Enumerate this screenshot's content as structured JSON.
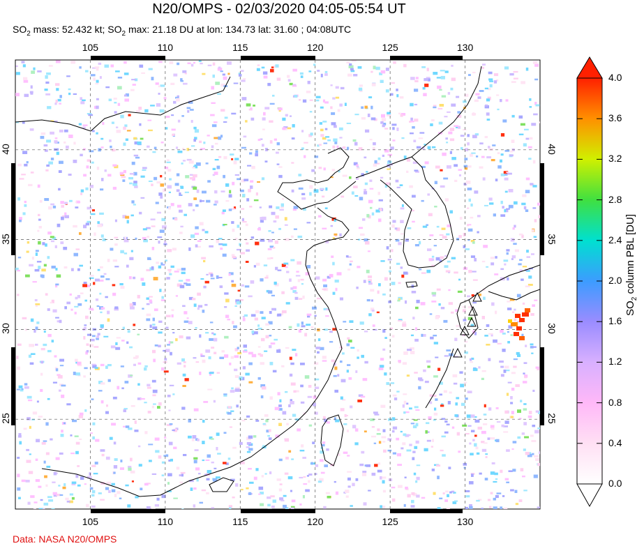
{
  "header": {
    "title": "N20/OMPS - 02/03/2020 04:05-05:54 UT",
    "subtitle_parts": [
      "SO",
      "2",
      " mass: 52.432 kt; SO",
      "2",
      " max: 21.18 DU at lon: 134.73 lat: 31.60 ; 04:08UTC"
    ]
  },
  "map": {
    "lon_ticks": [
      "105",
      "110",
      "115",
      "120",
      "125",
      "130"
    ],
    "lat_ticks": [
      "40",
      "35",
      "30",
      "25"
    ],
    "lon_values": [
      105,
      110,
      115,
      120,
      125,
      130
    ],
    "lat_values": [
      40,
      35,
      30,
      25
    ],
    "extent": {
      "lon_min": 100,
      "lon_max": 135,
      "lat_min": 20,
      "lat_max": 45
    }
  },
  "colorbar": {
    "title_parts": [
      "SO",
      "2",
      " column PBL [DU]"
    ],
    "labels": [
      "4.0",
      "3.6",
      "3.2",
      "2.8",
      "2.4",
      "2.0",
      "1.6",
      "1.2",
      "0.8",
      "0.4",
      "0.0"
    ],
    "colors": [
      "#ff2a00",
      "#ff8c00",
      "#f0e000",
      "#60e020",
      "#00e0c0",
      "#30a0ff",
      "#8080ff",
      "#c0a0ff",
      "#ffb0ff",
      "#ffd8f0",
      "#ffffff"
    ]
  },
  "credit": "Data: NASA N20/OMPS"
}
